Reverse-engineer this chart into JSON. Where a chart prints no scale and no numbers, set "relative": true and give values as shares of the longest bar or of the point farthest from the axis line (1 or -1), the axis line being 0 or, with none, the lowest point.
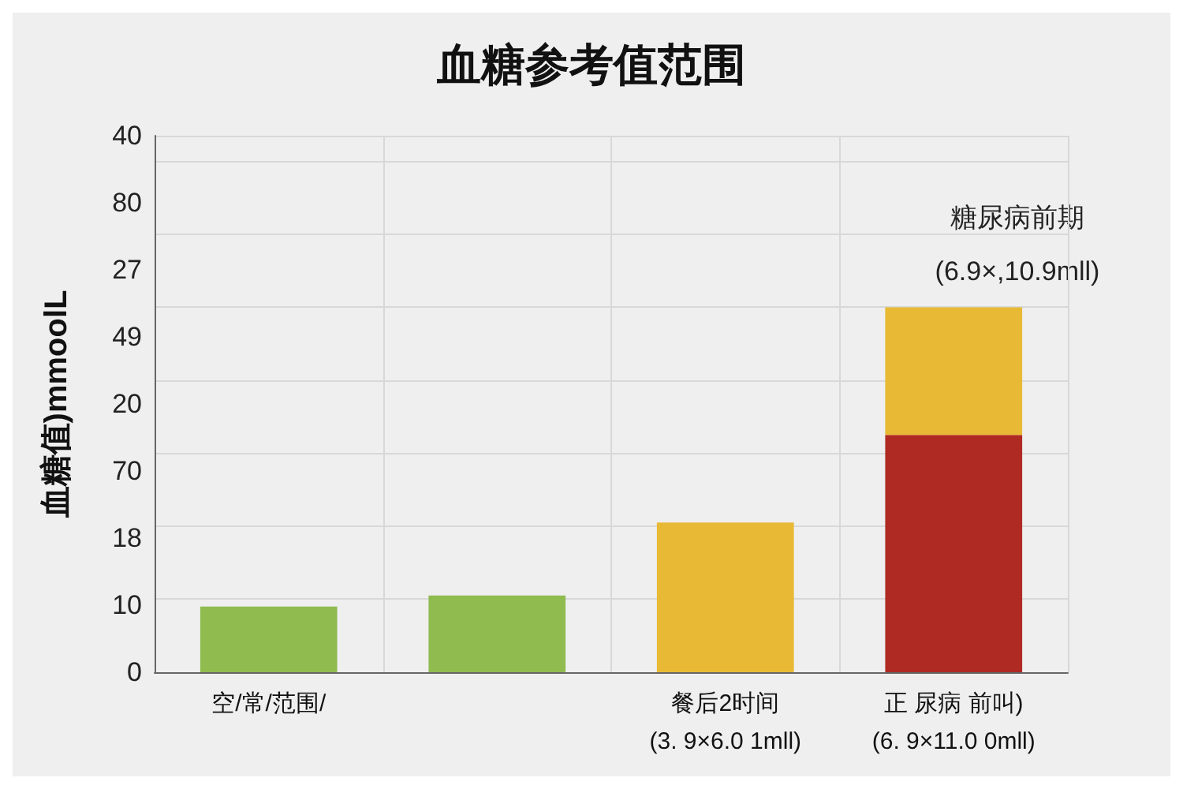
{
  "chart_data": {
    "type": "bar",
    "title": "血糖参考值范围",
    "ylabel": "血糖值)mmoolL",
    "categories": [
      "空/常/范围/",
      null,
      "餐后2时间\n(3. 9×6.0 1mll)",
      "正 尿病 前叫)\n(6. 9×11.0 0mll)"
    ],
    "series": [
      {
        "colors": [
          "#8fbb4f",
          "#8fbb4f",
          "#e8b935",
          "#b02a24"
        ],
        "values": [
          0.18,
          0.21,
          0.41,
          0.65
        ]
      },
      {
        "color": "#e8b935",
        "values": [
          null,
          null,
          null,
          0.35
        ]
      }
    ],
    "stacked": true,
    "relative": true,
    "annotations": [
      "40",
      "80",
      "27",
      "49",
      "20",
      "70",
      "18",
      "10",
      "0",
      "糖尿病前期",
      "(6.9×,10.9mll)"
    ],
    "grid": true
  }
}
